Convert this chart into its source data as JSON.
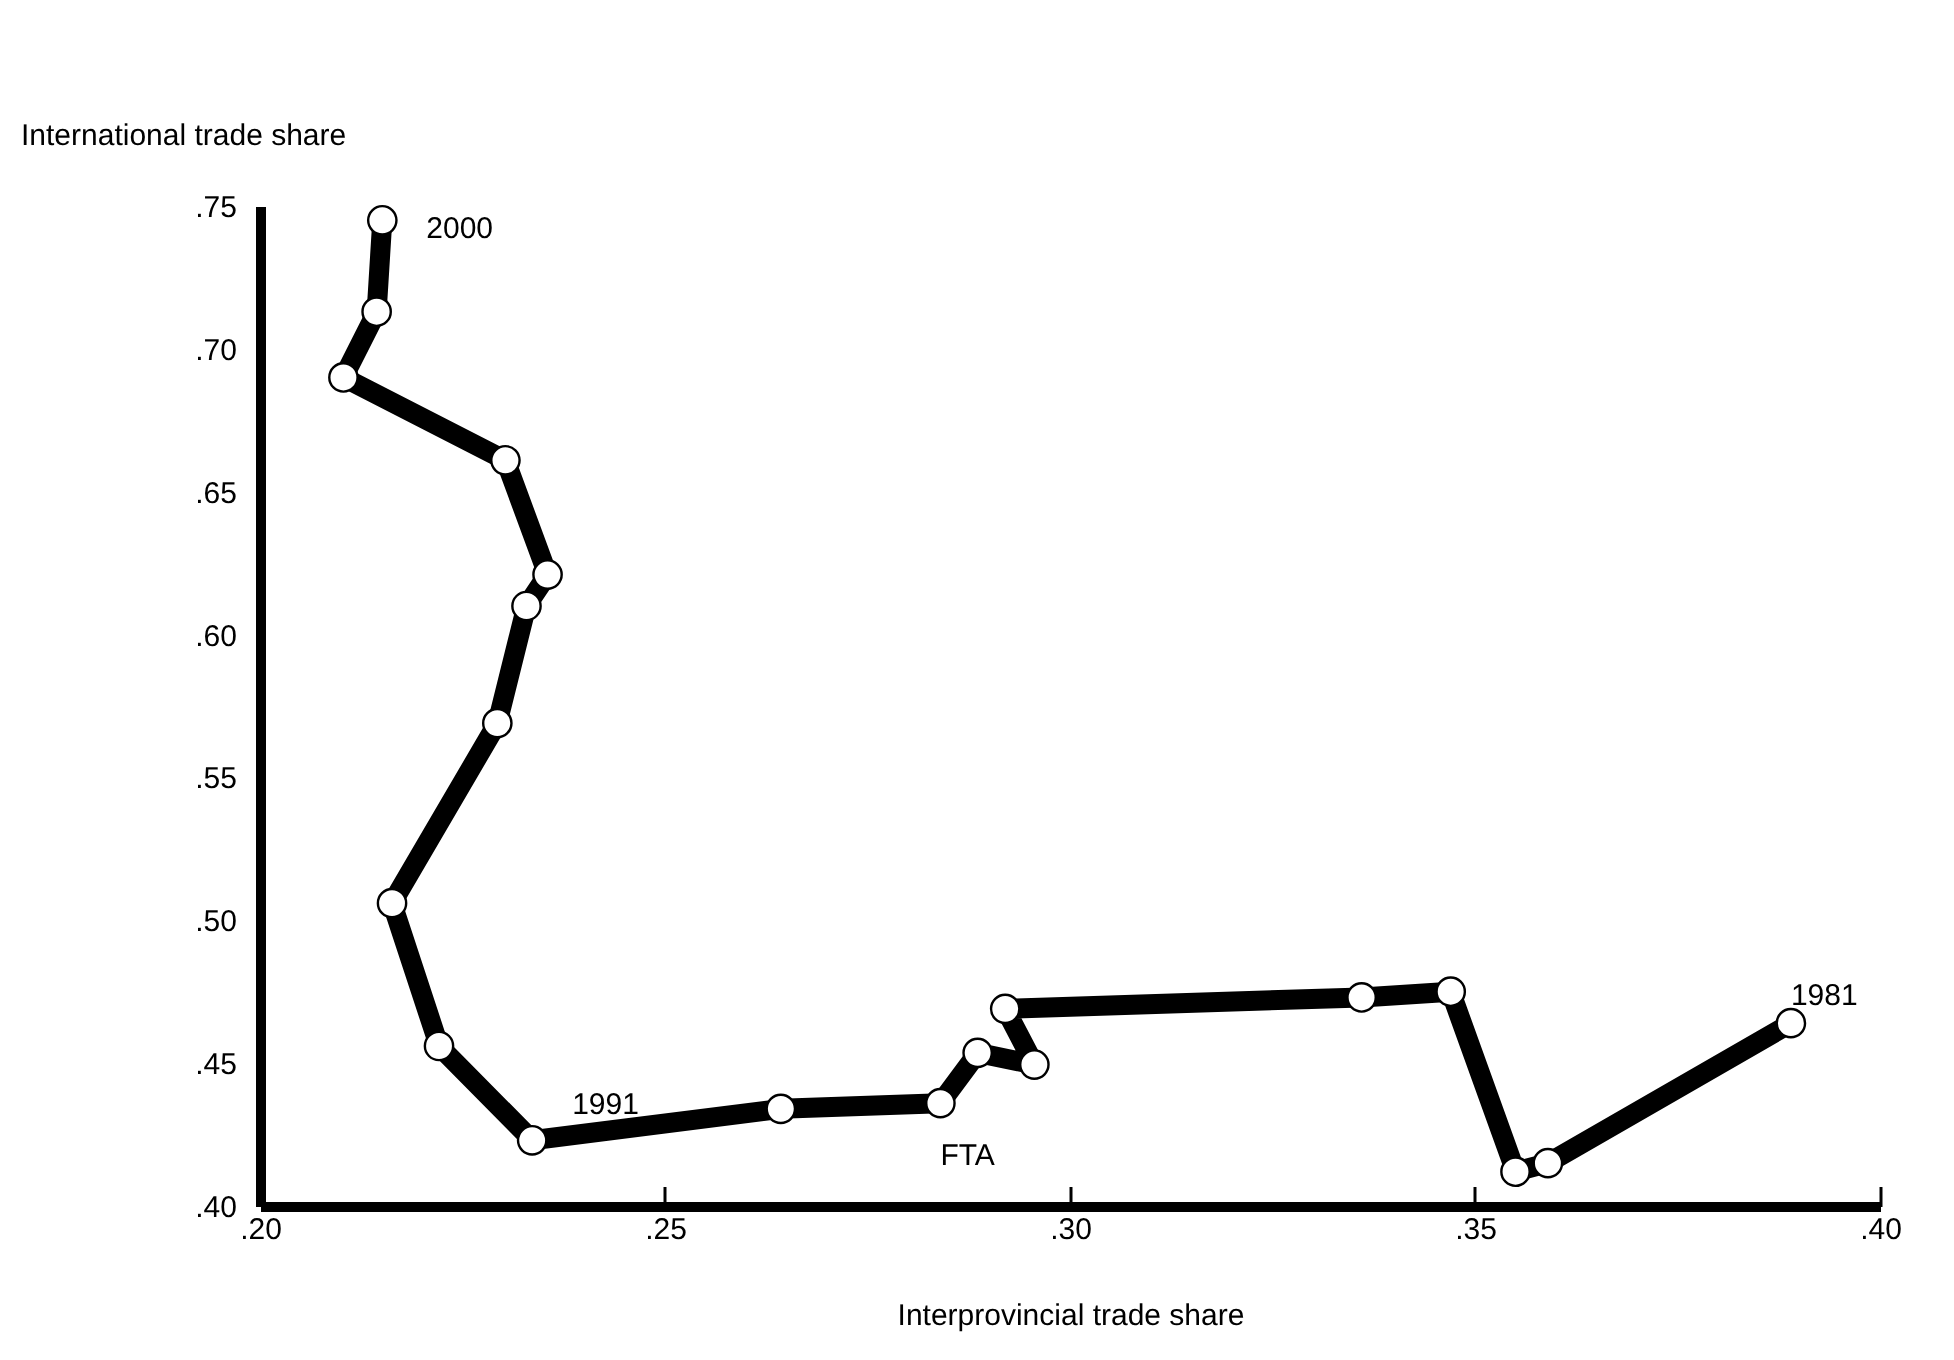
{
  "chart_data": {
    "type": "line",
    "xlabel": "Interprovincial trade share",
    "ylabel": "International trade share",
    "x": [
      0.389,
      0.359,
      0.355,
      0.347,
      0.336,
      0.292,
      0.2956,
      0.2886,
      0.284,
      0.2643,
      0.2336,
      0.2221,
      0.2163,
      0.2293,
      0.2329,
      0.2355,
      0.2303,
      0.2103,
      0.2144,
      0.2151
    ],
    "series": [
      {
        "color": "#000000",
        "values": [
          0.464,
          0.415,
          0.412,
          0.475,
          0.473,
          0.469,
          0.4495,
          0.4536,
          0.436,
          0.434,
          0.423,
          0.456,
          0.506,
          0.569,
          0.61,
          0.621,
          0.661,
          0.69,
          0.713,
          0.745
        ]
      }
    ],
    "xlim": [
      0.2,
      0.4
    ],
    "ylim": [
      0.4,
      0.75
    ],
    "xticks": [
      {
        "value": 0.2,
        "label": ".20"
      },
      {
        "value": 0.25,
        "label": ".25"
      },
      {
        "value": 0.3,
        "label": ".30"
      },
      {
        "value": 0.35,
        "label": ".35"
      },
      {
        "value": 0.4,
        "label": ".40"
      }
    ],
    "yticks": [
      {
        "value": 0.4,
        "label": ".40"
      },
      {
        "value": 0.45,
        "label": ".45"
      },
      {
        "value": 0.5,
        "label": ".50"
      },
      {
        "value": 0.55,
        "label": ".55"
      },
      {
        "value": 0.6,
        "label": ".60"
      },
      {
        "value": 0.65,
        "label": ".65"
      },
      {
        "value": 0.7,
        "label": ".70"
      },
      {
        "value": 0.75,
        "label": ".75"
      }
    ],
    "annotations": [
      {
        "text": "1981",
        "x": 0.389,
        "y": 0.464
      },
      {
        "text": "1991",
        "x": 0.2336,
        "y": 0.423
      },
      {
        "text": "2000",
        "x": 0.2151,
        "y": 0.745
      },
      {
        "text": "FTA",
        "x": 0.284,
        "y": 0.436
      }
    ],
    "marker": "circle",
    "grid": false
  }
}
